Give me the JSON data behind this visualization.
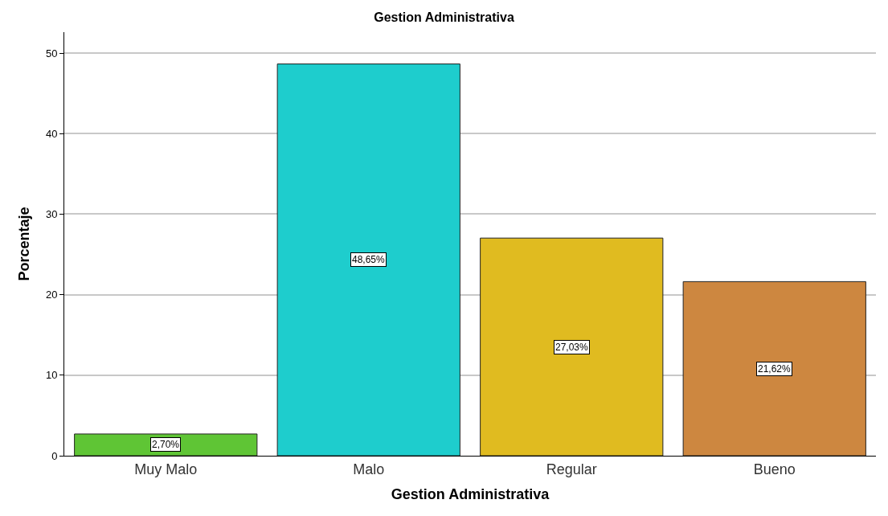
{
  "chart_data": {
    "type": "bar",
    "title": "Gestion Administrativa",
    "xlabel": "Gestion Administrativa",
    "ylabel": "Porcentaje",
    "categories": [
      "Muy Malo",
      "Malo",
      "Regular",
      "Bueno"
    ],
    "values": [
      2.7,
      48.65,
      27.03,
      21.62
    ],
    "value_labels": [
      "2,70%",
      "48,65%",
      "27,03%",
      "21,62%"
    ],
    "colors": [
      "#5fc535",
      "#1ecdcd",
      "#e0bb20",
      "#cd8740"
    ],
    "ylim": [
      0,
      52.6
    ],
    "yticks": [
      0,
      10,
      20,
      30,
      40,
      50
    ],
    "grid": "y",
    "legend": false
  }
}
